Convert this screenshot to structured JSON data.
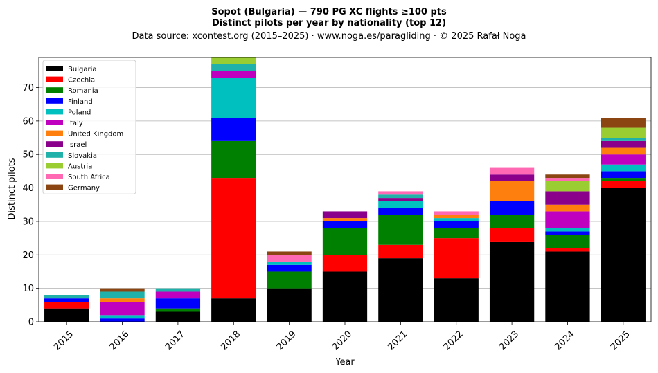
{
  "chart_data": {
    "type": "bar",
    "stacked": true,
    "title_line1": "Sopot (Bulgaria)  —  790 PG XC flights ≥100 pts",
    "title_line2": "Distinct pilots per year by nationality (top 12)",
    "subtitle": "Data source: xcontest.org (2015–2025)  ·  www.noga.es/paragliding  ·  © 2025 Rafał Noga",
    "xlabel": "Year",
    "ylabel": "Distinct pilots",
    "ylim": [
      0,
      79
    ],
    "yticks": [
      0,
      10,
      20,
      30,
      40,
      50,
      60,
      70
    ],
    "grid": "y-major",
    "legend_position": "top-left",
    "categories": [
      "2015",
      "2016",
      "2017",
      "2018",
      "2019",
      "2020",
      "2021",
      "2022",
      "2023",
      "2024",
      "2025"
    ],
    "series": [
      {
        "name": "Bulgaria",
        "color": "#000000",
        "values": [
          4,
          0,
          3,
          7,
          10,
          15,
          19,
          13,
          24,
          21,
          40
        ]
      },
      {
        "name": "Czechia",
        "color": "#ff0000",
        "values": [
          2,
          0,
          0,
          36,
          0,
          5,
          4,
          12,
          4,
          1,
          2
        ]
      },
      {
        "name": "Romania",
        "color": "#008000",
        "values": [
          0,
          0,
          1,
          11,
          5,
          8,
          9,
          3,
          4,
          4,
          1
        ]
      },
      {
        "name": "Finland",
        "color": "#0000ff",
        "values": [
          1,
          1,
          3,
          7,
          2,
          2,
          2,
          2,
          4,
          1,
          2
        ]
      },
      {
        "name": "Poland",
        "color": "#00bfbf",
        "values": [
          0,
          1,
          0,
          12,
          1,
          0,
          2,
          1,
          0,
          1,
          2
        ]
      },
      {
        "name": "Italy",
        "color": "#bf00bf",
        "values": [
          0,
          4,
          2,
          2,
          0,
          0,
          0,
          0,
          0,
          5,
          3
        ]
      },
      {
        "name": "United Kingdom",
        "color": "#ff7f0e",
        "values": [
          0,
          1,
          0,
          0,
          0,
          1,
          0,
          1,
          6,
          2,
          2
        ]
      },
      {
        "name": "Israel",
        "color": "#8b008b",
        "values": [
          0,
          0,
          0,
          0,
          0,
          2,
          1,
          0,
          2,
          4,
          2
        ]
      },
      {
        "name": "Slovakia",
        "color": "#20b2aa",
        "values": [
          1,
          2,
          1,
          2,
          0,
          0,
          1,
          0,
          0,
          0,
          1
        ]
      },
      {
        "name": "Austria",
        "color": "#9acd32",
        "values": [
          0,
          0,
          0,
          2,
          0,
          0,
          0,
          0,
          0,
          3,
          3
        ]
      },
      {
        "name": "South Africa",
        "color": "#ff69b4",
        "values": [
          0,
          0,
          0,
          0,
          2,
          0,
          1,
          1,
          2,
          1,
          0
        ]
      },
      {
        "name": "Germany",
        "color": "#8b4513",
        "values": [
          0,
          1,
          0,
          0,
          1,
          0,
          0,
          0,
          0,
          1,
          3
        ]
      }
    ]
  }
}
